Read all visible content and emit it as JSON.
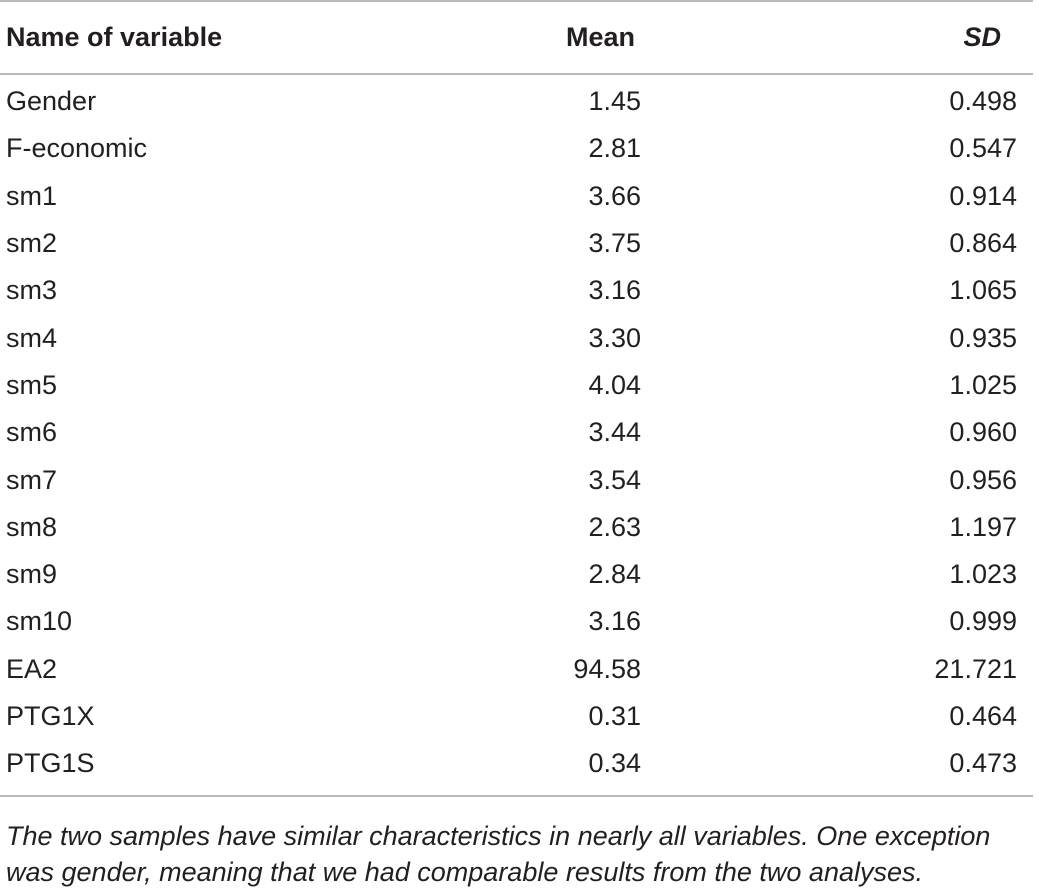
{
  "table": {
    "headers": {
      "name": "Name of variable",
      "mean": "Mean",
      "sd": "SD"
    },
    "rows": [
      {
        "name": "Gender",
        "mean": "1.45",
        "sd": "0.498"
      },
      {
        "name": "F-economic",
        "mean": "2.81",
        "sd": "0.547"
      },
      {
        "name": "sm1",
        "mean": "3.66",
        "sd": "0.914"
      },
      {
        "name": "sm2",
        "mean": "3.75",
        "sd": "0.864"
      },
      {
        "name": "sm3",
        "mean": "3.16",
        "sd": "1.065"
      },
      {
        "name": "sm4",
        "mean": "3.30",
        "sd": "0.935"
      },
      {
        "name": "sm5",
        "mean": "4.04",
        "sd": "1.025"
      },
      {
        "name": "sm6",
        "mean": "3.44",
        "sd": "0.960"
      },
      {
        "name": "sm7",
        "mean": "3.54",
        "sd": "0.956"
      },
      {
        "name": "sm8",
        "mean": "2.63",
        "sd": "1.197"
      },
      {
        "name": "sm9",
        "mean": "2.84",
        "sd": "1.023"
      },
      {
        "name": "sm10",
        "mean": "3.16",
        "sd": "0.999"
      },
      {
        "name": "EA2",
        "mean": "94.58",
        "sd": "21.721"
      },
      {
        "name": "PTG1X",
        "mean": "0.31",
        "sd": "0.464"
      },
      {
        "name": "PTG1S",
        "mean": "0.34",
        "sd": "0.473"
      }
    ]
  },
  "footnote": "The two samples have similar characteristics in nearly all variables. One exception was gender, meaning that we had comparable results from the two analyses."
}
